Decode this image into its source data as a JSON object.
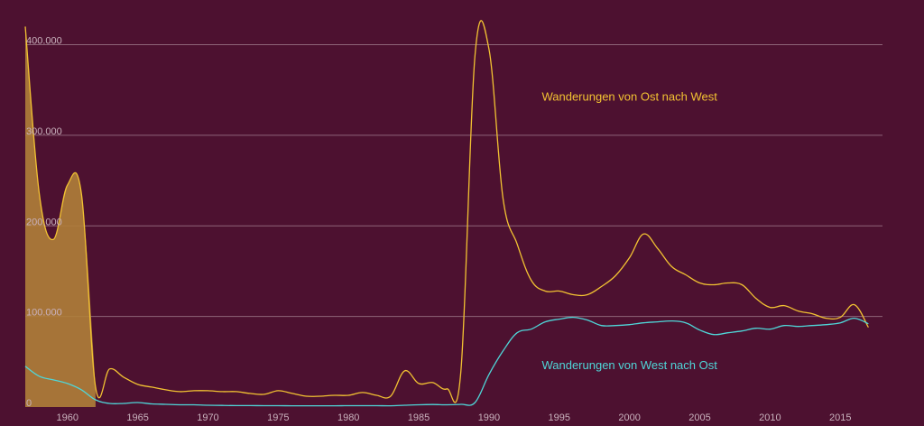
{
  "chart_data": {
    "type": "line",
    "title": "",
    "xlabel": "",
    "ylabel": "",
    "ylim": [
      0,
      400000
    ],
    "xlim": [
      1957,
      2018
    ],
    "y_ticks": [
      {
        "value": 0,
        "label": "0"
      },
      {
        "value": 100000,
        "label": "100.000"
      },
      {
        "value": 200000,
        "label": "200.000"
      },
      {
        "value": 300000,
        "label": "300.000"
      },
      {
        "value": 400000,
        "label": "400.000"
      }
    ],
    "x_ticks": [
      {
        "value": 1960,
        "label": "1960"
      },
      {
        "value": 1965,
        "label": "1965"
      },
      {
        "value": 1970,
        "label": "1970"
      },
      {
        "value": 1975,
        "label": "1975"
      },
      {
        "value": 1980,
        "label": "1980"
      },
      {
        "value": 1985,
        "label": "1985"
      },
      {
        "value": 1990,
        "label": "1990"
      },
      {
        "value": 1995,
        "label": "1995"
      },
      {
        "value": 2000,
        "label": "2000"
      },
      {
        "value": 2005,
        "label": "2005"
      },
      {
        "value": 2010,
        "label": "2010"
      },
      {
        "value": 2015,
        "label": "2015"
      }
    ],
    "grid": true,
    "colors": {
      "background": "#4d1130",
      "grid": "#8e6478",
      "ost_west": "#f2c232",
      "west_ost": "#4fd6d8",
      "fill": "#b07f3a"
    },
    "shaded_range": [
      1957,
      1962
    ],
    "series": [
      {
        "name": "Wanderungen von Ost nach West",
        "color": "#f2c232",
        "points": [
          [
            1957,
            420000
          ],
          [
            1958,
            235000
          ],
          [
            1959,
            185000
          ],
          [
            1960,
            245000
          ],
          [
            1961,
            235000
          ],
          [
            1962,
            22000
          ],
          [
            1963,
            42000
          ],
          [
            1964,
            33000
          ],
          [
            1965,
            25000
          ],
          [
            1966,
            22000
          ],
          [
            1967,
            19000
          ],
          [
            1968,
            17000
          ],
          [
            1969,
            18000
          ],
          [
            1970,
            18000
          ],
          [
            1971,
            17000
          ],
          [
            1972,
            17000
          ],
          [
            1973,
            15000
          ],
          [
            1974,
            14000
          ],
          [
            1975,
            18000
          ],
          [
            1976,
            15000
          ],
          [
            1977,
            12000
          ],
          [
            1978,
            12000
          ],
          [
            1979,
            13000
          ],
          [
            1980,
            13000
          ],
          [
            1981,
            16000
          ],
          [
            1982,
            13000
          ],
          [
            1983,
            12000
          ],
          [
            1984,
            40000
          ],
          [
            1985,
            26000
          ],
          [
            1986,
            27000
          ],
          [
            1987,
            20000
          ],
          [
            1988,
            40000
          ],
          [
            1989,
            388000
          ],
          [
            1990,
            395000
          ],
          [
            1991,
            230000
          ],
          [
            1992,
            180000
          ],
          [
            1993,
            140000
          ],
          [
            1994,
            128000
          ],
          [
            1995,
            128000
          ],
          [
            1996,
            124000
          ],
          [
            1997,
            124000
          ],
          [
            1998,
            133000
          ],
          [
            1999,
            145000
          ],
          [
            2000,
            165000
          ],
          [
            2001,
            191000
          ],
          [
            2002,
            175000
          ],
          [
            2003,
            155000
          ],
          [
            2004,
            146000
          ],
          [
            2005,
            137000
          ],
          [
            2006,
            135000
          ],
          [
            2007,
            137000
          ],
          [
            2008,
            135000
          ],
          [
            2009,
            120000
          ],
          [
            2010,
            110000
          ],
          [
            2011,
            112000
          ],
          [
            2012,
            106000
          ],
          [
            2013,
            103000
          ],
          [
            2014,
            98000
          ],
          [
            2015,
            99000
          ],
          [
            2016,
            113000
          ],
          [
            2017,
            88000
          ]
        ]
      },
      {
        "name": "Wanderungen von West nach Ost",
        "color": "#4fd6d8",
        "points": [
          [
            1957,
            45000
          ],
          [
            1958,
            34000
          ],
          [
            1959,
            30000
          ],
          [
            1960,
            26000
          ],
          [
            1961,
            19000
          ],
          [
            1962,
            8000
          ],
          [
            1963,
            4000
          ],
          [
            1964,
            4000
          ],
          [
            1965,
            5000
          ],
          [
            1966,
            3500
          ],
          [
            1967,
            3000
          ],
          [
            1968,
            2500
          ],
          [
            1969,
            2500
          ],
          [
            1970,
            2000
          ],
          [
            1971,
            1800
          ],
          [
            1972,
            1600
          ],
          [
            1973,
            1600
          ],
          [
            1974,
            1500
          ],
          [
            1975,
            1500
          ],
          [
            1976,
            1400
          ],
          [
            1977,
            1400
          ],
          [
            1978,
            1400
          ],
          [
            1979,
            1400
          ],
          [
            1980,
            1500
          ],
          [
            1981,
            1500
          ],
          [
            1982,
            1500
          ],
          [
            1983,
            1400
          ],
          [
            1984,
            2000
          ],
          [
            1985,
            2500
          ],
          [
            1986,
            2800
          ],
          [
            1987,
            2500
          ],
          [
            1988,
            3000
          ],
          [
            1989,
            5000
          ],
          [
            1990,
            36000
          ],
          [
            1991,
            62000
          ],
          [
            1992,
            82000
          ],
          [
            1993,
            86000
          ],
          [
            1994,
            94000
          ],
          [
            1995,
            97000
          ],
          [
            1996,
            99000
          ],
          [
            1997,
            96000
          ],
          [
            1998,
            90000
          ],
          [
            1999,
            90000
          ],
          [
            2000,
            91000
          ],
          [
            2001,
            93000
          ],
          [
            2002,
            94000
          ],
          [
            2003,
            95000
          ],
          [
            2004,
            93000
          ],
          [
            2005,
            85000
          ],
          [
            2006,
            80000
          ],
          [
            2007,
            82000
          ],
          [
            2008,
            84000
          ],
          [
            2009,
            87000
          ],
          [
            2010,
            86000
          ],
          [
            2011,
            90000
          ],
          [
            2012,
            89000
          ],
          [
            2013,
            90000
          ],
          [
            2014,
            91000
          ],
          [
            2015,
            93000
          ],
          [
            2016,
            98000
          ],
          [
            2017,
            92000
          ]
        ]
      }
    ],
    "annotations": [
      {
        "text": "Wanderungen von Ost nach West",
        "series": 0,
        "x": 2000,
        "y": 338000
      },
      {
        "text": "Wanderungen von West nach Ost",
        "series": 1,
        "x": 2000,
        "y": 42000
      }
    ]
  }
}
